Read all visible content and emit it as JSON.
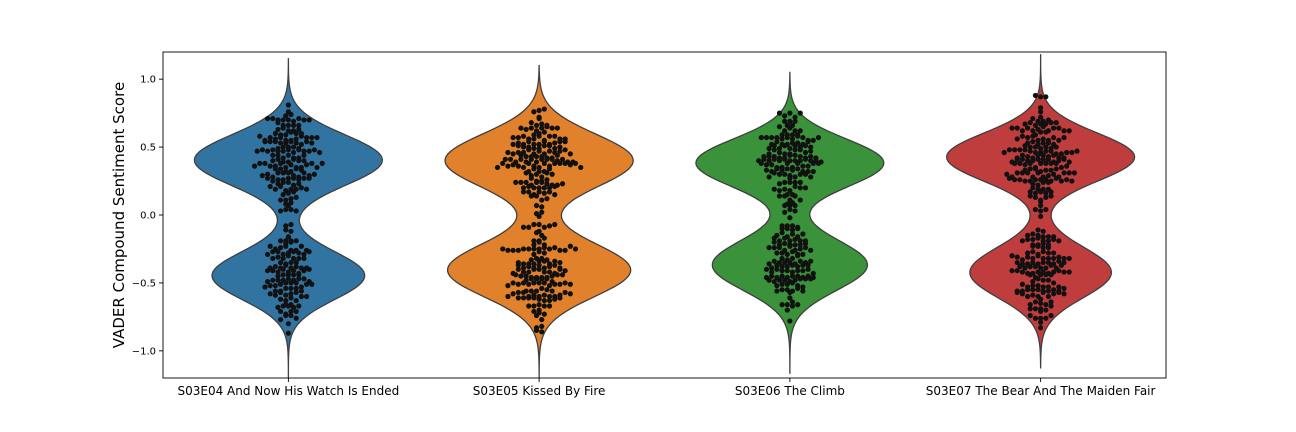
{
  "chart_data": {
    "type": "violin",
    "overlay": "swarm",
    "title": "",
    "xlabel": "",
    "ylabel": "VADER Compound Sentiment Score",
    "ylim": [
      -1.2,
      1.2
    ],
    "yticks": [
      -1.0,
      -0.5,
      0.0,
      0.5,
      1.0
    ],
    "ytick_labels": [
      "−1.0",
      "−0.5",
      "0.0",
      "0.5",
      "1.0"
    ],
    "grid": false,
    "legend": "none",
    "point_color": "#111111",
    "categories": [
      "S03E04 And Now His Watch Is Ended",
      "S03E05 Kissed By Fire",
      "S03E06 The Climb",
      "S03E07 The Bear And The Maiden Fair"
    ],
    "series": [
      {
        "color": "#3274a1",
        "range": [
          -1.2,
          1.15
        ],
        "clusters": [
          {
            "center": 0.42,
            "sd": 0.19,
            "n": 150,
            "lo": 0.0,
            "hi": 0.86
          },
          {
            "center": -0.46,
            "sd": 0.18,
            "n": 115,
            "lo": -0.9,
            "hi": -0.01
          }
        ]
      },
      {
        "color": "#e1812c",
        "range": [
          -1.2,
          1.1
        ],
        "clusters": [
          {
            "center": 0.42,
            "sd": 0.2,
            "n": 150,
            "lo": 0.0,
            "hi": 0.81
          },
          {
            "center": -0.42,
            "sd": 0.2,
            "n": 140,
            "lo": -0.95,
            "hi": -0.01
          }
        ]
      },
      {
        "color": "#3a923a",
        "range": [
          -1.17,
          1.05
        ],
        "clusters": [
          {
            "center": 0.4,
            "sd": 0.18,
            "n": 140,
            "lo": 0.0,
            "hi": 0.77
          },
          {
            "center": -0.38,
            "sd": 0.19,
            "n": 115,
            "lo": -0.88,
            "hi": -0.01
          }
        ]
      },
      {
        "color": "#c03d3e",
        "range": [
          -1.13,
          1.18
        ],
        "clusters": [
          {
            "center": 0.44,
            "sd": 0.18,
            "n": 160,
            "lo": 0.0,
            "hi": 0.9
          },
          {
            "center": -0.44,
            "sd": 0.19,
            "n": 130,
            "lo": -0.84,
            "hi": -0.01
          }
        ]
      }
    ]
  }
}
